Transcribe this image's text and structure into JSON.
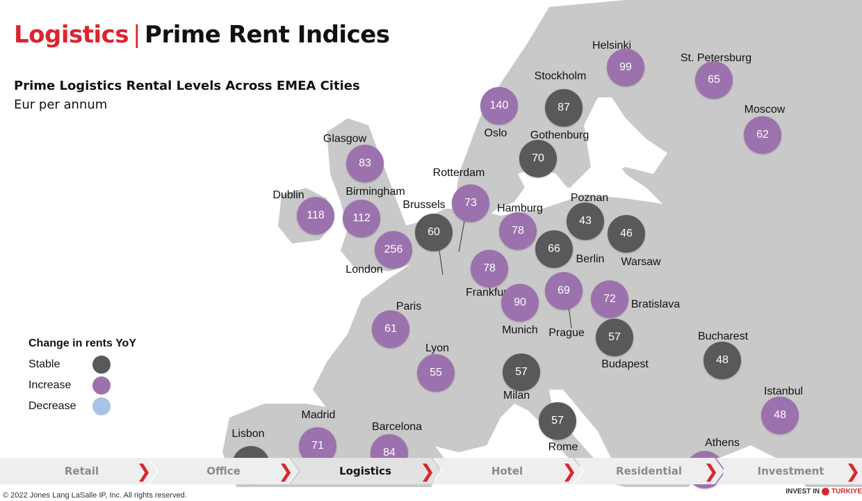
{
  "title": {
    "part1": "Logistics",
    "separator": "|",
    "part2": "Prime Rent Indices"
  },
  "subtitle": "Prime Logistics Rental Levels Across EMEA Cities",
  "unit": "Eur per annum",
  "legend": {
    "title": "Change in rents YoY",
    "items": [
      {
        "label": "Stable",
        "color": "#58595b"
      },
      {
        "label": "Increase",
        "color": "#9b72ad"
      },
      {
        "label": "Decrease",
        "color": "#a9c2e8"
      }
    ]
  },
  "colors": {
    "stable": "#58595b",
    "increase": "#9b72ad",
    "decrease": "#a9c2e8",
    "land": "#c9c9c9",
    "accent": "#d9262e"
  },
  "cities": [
    {
      "name": "Helsinki",
      "value": "99",
      "status": "increase"
    },
    {
      "name": "St. Petersburg",
      "value": "65",
      "status": "increase"
    },
    {
      "name": "Stockholm",
      "value": "87",
      "status": "stable"
    },
    {
      "name": "Oslo",
      "value": "140",
      "status": "increase"
    },
    {
      "name": "Moscow",
      "value": "62",
      "status": "increase"
    },
    {
      "name": "Gothenburg",
      "value": "70",
      "status": "stable"
    },
    {
      "name": "Glasgow",
      "value": "83",
      "status": "increase"
    },
    {
      "name": "Rotterdam",
      "value": "73",
      "status": "increase"
    },
    {
      "name": "Dublin",
      "value": "118",
      "status": "increase"
    },
    {
      "name": "Birmingham",
      "value": "112",
      "status": "increase"
    },
    {
      "name": "Brussels",
      "value": "60",
      "status": "stable"
    },
    {
      "name": "Hamburg",
      "value": "78",
      "status": "increase"
    },
    {
      "name": "Poznan",
      "value": "43",
      "status": "stable"
    },
    {
      "name": "Warsaw",
      "value": "46",
      "status": "stable"
    },
    {
      "name": "London",
      "value": "256",
      "status": "increase"
    },
    {
      "name": "Berlin",
      "value": "66",
      "status": "stable"
    },
    {
      "name": "Frankfurt",
      "value": "78",
      "status": "increase"
    },
    {
      "name": "Munich",
      "value": "90",
      "status": "increase"
    },
    {
      "name": "Prague",
      "value": "69",
      "status": "increase"
    },
    {
      "name": "Bratislava",
      "value": "72",
      "status": "increase"
    },
    {
      "name": "Paris",
      "value": "61",
      "status": "increase"
    },
    {
      "name": "Budapest",
      "value": "57",
      "status": "stable"
    },
    {
      "name": "Bucharest",
      "value": "48",
      "status": "stable"
    },
    {
      "name": "Lyon",
      "value": "55",
      "status": "increase"
    },
    {
      "name": "Milan",
      "value": "57",
      "status": "stable"
    },
    {
      "name": "Istanbul",
      "value": "48",
      "status": "increase"
    },
    {
      "name": "Rome",
      "value": "57",
      "status": "stable"
    },
    {
      "name": "Madrid",
      "value": "71",
      "status": "increase"
    },
    {
      "name": "Barcelona",
      "value": "84",
      "status": "increase"
    },
    {
      "name": "Lisbon",
      "value": "",
      "status": "stable"
    },
    {
      "name": "Athens",
      "value": "",
      "status": "increase"
    }
  ],
  "nav": [
    {
      "label": "Retail",
      "active": false
    },
    {
      "label": "Office",
      "active": false
    },
    {
      "label": "Logistics",
      "active": true
    },
    {
      "label": "Hotel",
      "active": false
    },
    {
      "label": "Residential",
      "active": false
    },
    {
      "label": "Investment",
      "active": false
    }
  ],
  "footer": {
    "copyright": "© 2022 Jones Lang LaSalle IP, Inc. All rights reserved.",
    "brand_prefix": "INVEST IN",
    "brand_name": "TURKIYE"
  }
}
